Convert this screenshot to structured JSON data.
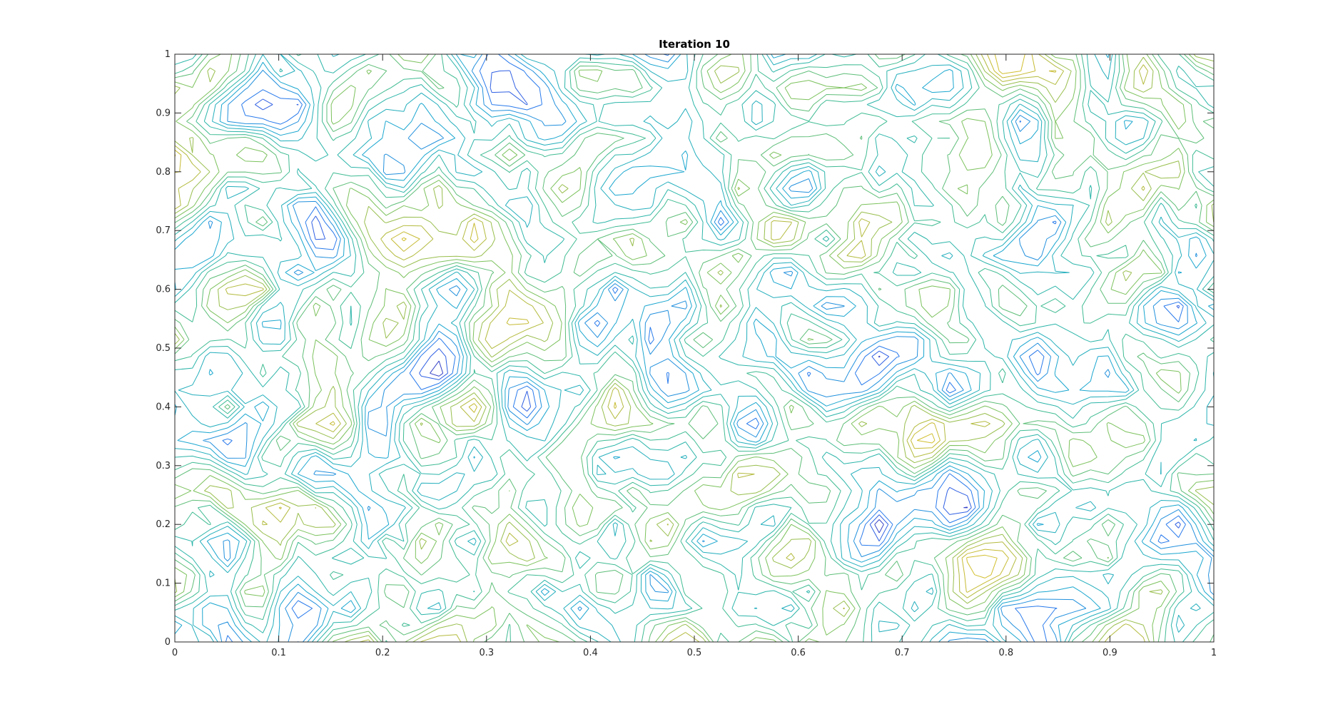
{
  "chart_data": {
    "type": "contour",
    "title": "Iteration 10",
    "xlabel": "",
    "ylabel": "",
    "xlim": [
      0,
      1
    ],
    "ylim": [
      0,
      1
    ],
    "xticks": [
      "0",
      "0.1",
      "0.2",
      "0.3",
      "0.4",
      "0.5",
      "0.6",
      "0.7",
      "0.8",
      "0.9",
      "1"
    ],
    "yticks": [
      "0",
      "0.1",
      "0.2",
      "0.3",
      "0.4",
      "0.5",
      "0.6",
      "0.7",
      "0.8",
      "0.9",
      "1"
    ],
    "grid": false,
    "colormap": [
      "#3e26a8",
      "#2d6ff2",
      "#1aa6cf",
      "#30b9a0",
      "#7cc25d",
      "#c1b936",
      "#dbc32a"
    ],
    "level_count": 14,
    "field_grid_resolution": [
      60,
      36
    ],
    "random_seed": 10
  }
}
